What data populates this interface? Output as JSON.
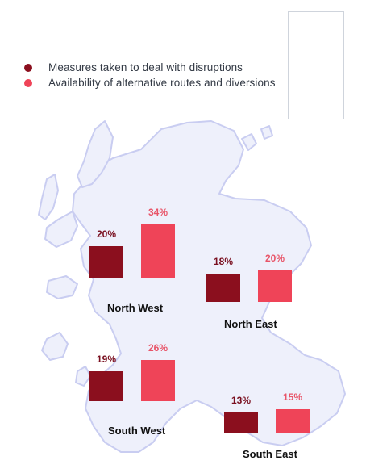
{
  "colors": {
    "series_a": "#8b0f1e",
    "series_b": "#ef4458",
    "label_a": "#7a1020",
    "label_b": "#e85468",
    "land_fill": "#eef0fb",
    "land_stroke": "#c9cdf1"
  },
  "legend": [
    {
      "label": "Measures taken to deal with disruptions",
      "series": "a"
    },
    {
      "label": "Availability of alternative routes and diversions",
      "series": "b"
    }
  ],
  "chart_data": {
    "type": "bar",
    "value_unit": "%",
    "series_names": [
      "Measures taken to deal with disruptions",
      "Availability of alternative routes and diversions"
    ],
    "regions": [
      {
        "name": "North West",
        "values": [
          20,
          34
        ],
        "labels": [
          "20%",
          "34%"
        ]
      },
      {
        "name": "North East",
        "values": [
          18,
          20
        ],
        "labels": [
          "18%",
          "20%"
        ]
      },
      {
        "name": "South West",
        "values": [
          19,
          26
        ],
        "labels": [
          "19%",
          "26%"
        ]
      },
      {
        "name": "South East",
        "values": [
          13,
          15
        ],
        "labels": [
          "13%",
          "15%"
        ]
      }
    ]
  },
  "map_icon": "scotland-map-outline",
  "inset_icon": "shetland-islands-outline"
}
